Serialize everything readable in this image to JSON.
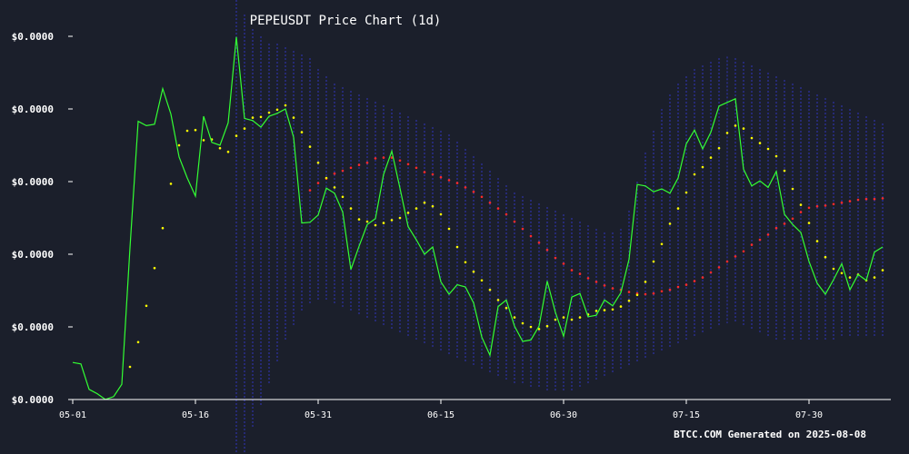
{
  "chart_data": {
    "type": "line",
    "title": "PEPEUSDT Price Chart (1d)",
    "xlabel": "",
    "ylabel": "",
    "x_tick_labels": [
      "05-01",
      "05-16",
      "05-31",
      "06-15",
      "06-30",
      "07-15",
      "07-30"
    ],
    "y_tick_labels": [
      "$0.0000",
      "$0.0000",
      "$0.0000",
      "$0.0000",
      "$0.0000",
      "$0.0000"
    ],
    "y_tick_values": [
      0.0,
      1.0,
      2.0,
      3.0,
      4.0,
      5.0
    ],
    "x_tick_days": [
      0,
      15,
      30,
      45,
      60,
      75,
      90
    ],
    "xlim": [
      0,
      100
    ],
    "ylim": [
      0,
      5
    ],
    "grid": false,
    "legend": "none",
    "colors": {
      "background": "#1b1f2b",
      "price": "#33ff33",
      "fast_dots": "#ffff00",
      "slow_dots": "#ff2a2a",
      "bands": "#2a2e8c"
    },
    "series": [
      {
        "key": "price",
        "style": "line",
        "values": [
          0.51,
          0.49,
          0.14,
          0.08,
          0.0,
          0.04,
          0.21,
          2.09,
          3.83,
          3.77,
          3.79,
          4.28,
          3.93,
          3.34,
          3.05,
          2.8,
          3.9,
          3.54,
          3.5,
          3.81,
          4.99,
          3.87,
          3.84,
          3.75,
          3.9,
          3.94,
          4.0,
          3.61,
          2.43,
          2.44,
          2.54,
          2.91,
          2.84,
          2.58,
          1.79,
          2.11,
          2.41,
          2.49,
          3.1,
          3.42,
          2.91,
          2.38,
          2.2,
          2.0,
          2.1,
          1.62,
          1.45,
          1.58,
          1.55,
          1.33,
          0.86,
          0.61,
          1.28,
          1.37,
          1.01,
          0.8,
          0.82,
          1.01,
          1.63,
          1.2,
          0.87,
          1.41,
          1.46,
          1.14,
          1.16,
          1.37,
          1.29,
          1.47,
          1.93,
          2.96,
          2.94,
          2.86,
          2.9,
          2.84,
          3.05,
          3.52,
          3.71,
          3.45,
          3.68,
          4.04,
          4.09,
          4.14,
          3.17,
          2.94,
          3.01,
          2.92,
          3.14,
          2.55,
          2.41,
          2.3,
          1.9,
          1.6,
          1.45,
          1.65,
          1.87,
          1.51,
          1.72,
          1.64,
          2.03,
          2.1
        ]
      },
      {
        "key": "fast",
        "style": "dots",
        "values": [
          null,
          null,
          null,
          null,
          null,
          null,
          null,
          0.45,
          0.79,
          1.29,
          1.81,
          2.36,
          2.97,
          3.5,
          3.7,
          3.71,
          3.57,
          3.58,
          3.46,
          3.41,
          3.63,
          3.73,
          3.88,
          3.89,
          3.95,
          3.99,
          4.05,
          3.88,
          3.68,
          3.48,
          3.26,
          3.05,
          2.92,
          2.79,
          2.63,
          2.48,
          2.45,
          2.4,
          2.43,
          2.47,
          2.5,
          2.57,
          2.63,
          2.71,
          2.66,
          2.55,
          2.35,
          2.1,
          1.89,
          1.76,
          1.64,
          1.51,
          1.37,
          1.26,
          1.13,
          1.05,
          1.0,
          0.97,
          1.01,
          1.1,
          1.13,
          1.1,
          1.13,
          1.17,
          1.22,
          1.23,
          1.24,
          1.28,
          1.36,
          1.44,
          1.62,
          1.9,
          2.14,
          2.42,
          2.63,
          2.85,
          3.1,
          3.2,
          3.33,
          3.46,
          3.67,
          3.77,
          3.73,
          3.6,
          3.53,
          3.45,
          3.35,
          3.15,
          2.9,
          2.68,
          2.43,
          2.18,
          1.96,
          1.8,
          1.74,
          1.68,
          1.72,
          1.64,
          1.68,
          1.78
        ]
      },
      {
        "key": "slow",
        "style": "dots",
        "values": [
          null,
          null,
          null,
          null,
          null,
          null,
          null,
          null,
          null,
          null,
          null,
          null,
          null,
          null,
          null,
          null,
          null,
          null,
          null,
          null,
          null,
          null,
          null,
          null,
          null,
          null,
          null,
          null,
          null,
          2.88,
          2.98,
          3.04,
          3.11,
          3.15,
          3.19,
          3.23,
          3.26,
          3.32,
          3.33,
          3.33,
          3.29,
          3.24,
          3.19,
          3.13,
          3.1,
          3.06,
          3.02,
          2.98,
          2.92,
          2.86,
          2.79,
          2.71,
          2.63,
          2.55,
          2.45,
          2.35,
          2.25,
          2.16,
          2.06,
          1.95,
          1.87,
          1.78,
          1.73,
          1.67,
          1.62,
          1.57,
          1.53,
          1.51,
          1.48,
          1.46,
          1.45,
          1.46,
          1.49,
          1.51,
          1.55,
          1.58,
          1.63,
          1.68,
          1.75,
          1.82,
          1.9,
          1.97,
          2.04,
          2.13,
          2.2,
          2.27,
          2.36,
          2.42,
          2.49,
          2.58,
          2.64,
          2.66,
          2.67,
          2.69,
          2.71,
          2.73,
          2.75,
          2.76,
          2.76,
          2.77
        ]
      },
      {
        "key": "bands",
        "style": "band",
        "upper": [
          null,
          null,
          null,
          null,
          null,
          null,
          null,
          null,
          null,
          null,
          null,
          null,
          null,
          null,
          null,
          null,
          null,
          null,
          null,
          null,
          5.5,
          5.3,
          5.1,
          5.0,
          4.9,
          4.9,
          4.85,
          4.8,
          4.75,
          4.7,
          4.55,
          4.45,
          4.35,
          4.3,
          4.25,
          4.2,
          4.15,
          4.1,
          4.05,
          4.0,
          3.95,
          3.9,
          3.85,
          3.8,
          3.75,
          3.7,
          3.65,
          3.55,
          3.45,
          3.35,
          3.25,
          3.15,
          3.05,
          2.95,
          2.85,
          2.8,
          2.75,
          2.7,
          2.65,
          2.6,
          2.55,
          2.5,
          2.45,
          2.4,
          2.35,
          2.3,
          2.3,
          2.35,
          2.6,
          3.0,
          3.4,
          3.7,
          4.0,
          4.2,
          4.35,
          4.45,
          4.55,
          4.6,
          4.65,
          4.7,
          4.72,
          4.7,
          4.65,
          4.6,
          4.55,
          4.5,
          4.45,
          4.4,
          4.35,
          4.3,
          4.25,
          4.2,
          4.15,
          4.1,
          4.05,
          4.0,
          3.95,
          3.9,
          3.85,
          3.8
        ],
        "lower": [
          null,
          null,
          null,
          null,
          null,
          null,
          null,
          null,
          null,
          null,
          null,
          null,
          null,
          null,
          null,
          null,
          null,
          null,
          null,
          null,
          -1.2,
          -0.8,
          -0.4,
          -0.1,
          0.2,
          0.5,
          0.8,
          1.0,
          1.2,
          1.3,
          1.35,
          1.35,
          1.3,
          1.25,
          1.2,
          1.15,
          1.1,
          1.05,
          1.0,
          0.95,
          0.9,
          0.85,
          0.8,
          0.75,
          0.7,
          0.65,
          0.6,
          0.55,
          0.5,
          0.45,
          0.4,
          0.35,
          0.3,
          0.25,
          0.2,
          0.2,
          0.15,
          0.15,
          0.1,
          0.1,
          0.1,
          0.1,
          0.15,
          0.2,
          0.25,
          0.3,
          0.35,
          0.4,
          0.45,
          0.5,
          0.55,
          0.6,
          0.65,
          0.7,
          0.75,
          0.8,
          0.85,
          0.9,
          0.95,
          1.0,
          1.05,
          1.05,
          1.0,
          0.95,
          0.9,
          0.85,
          0.8,
          0.8,
          0.8,
          0.8,
          0.8,
          0.8,
          0.8,
          0.8,
          0.85,
          0.85,
          0.85,
          0.85,
          0.85,
          0.85
        ]
      }
    ]
  },
  "footer": "BTCC.COM Generated on 2025-08-08"
}
